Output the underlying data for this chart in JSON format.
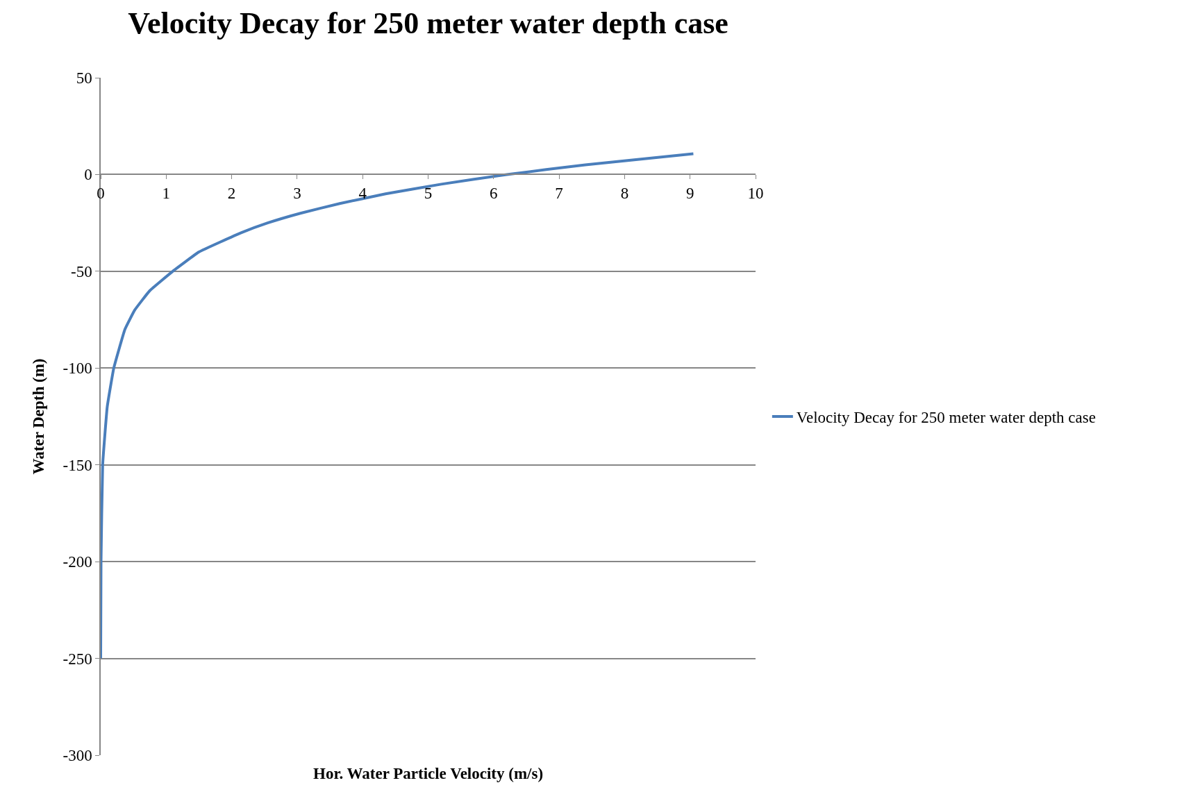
{
  "chart_data": {
    "type": "line",
    "title": "Velocity Decay for 250 meter water depth case",
    "xlabel": "Hor. Water Particle Velocity (m/s)",
    "ylabel": "Water Depth (m)",
    "series": [
      {
        "name": "Velocity Decay for 250 meter water depth case",
        "color": "#4a7ebb",
        "x": [
          9.05,
          7.4,
          6.2,
          5.2,
          4.35,
          3.65,
          3.05,
          2.55,
          2.15,
          1.5,
          1.1,
          0.75,
          0.52,
          0.37,
          0.2,
          0.1,
          0.03,
          0.005,
          0
        ],
        "values": [
          10.7,
          5,
          0,
          -5,
          -10,
          -15,
          -20,
          -25,
          -30,
          -40,
          -50,
          -60,
          -70,
          -80,
          -100,
          -120,
          -150,
          -200,
          -250
        ]
      }
    ],
    "xlim": [
      0,
      10
    ],
    "xticks": [
      0,
      1,
      2,
      3,
      4,
      5,
      6,
      7,
      8,
      9,
      10
    ],
    "ylim": [
      -300,
      50
    ],
    "yticks": [
      -300,
      -250,
      -200,
      -150,
      -100,
      -50,
      0,
      50
    ],
    "grid": "y",
    "legend": "right",
    "marker": "none",
    "line_style": "solid"
  }
}
